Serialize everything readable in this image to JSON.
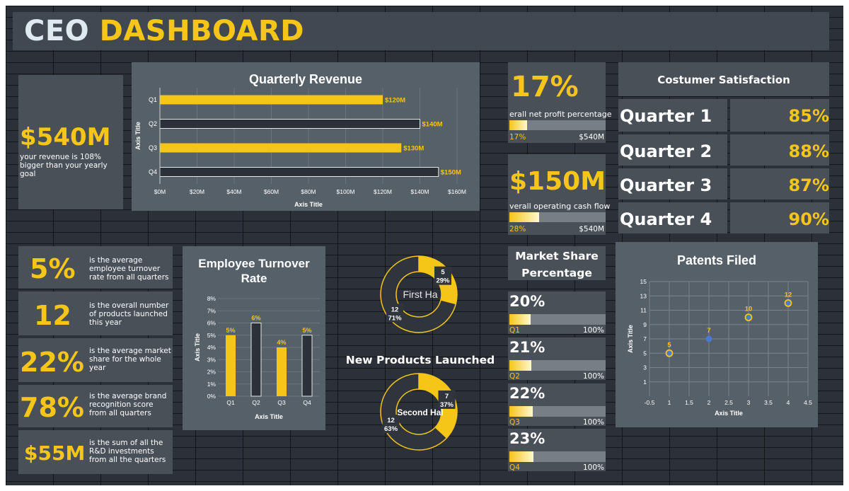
{
  "header": {
    "title_part1": "CEO",
    "title_part2": "DASHBOARD"
  },
  "revenue_kpi": {
    "value": "$540M",
    "note": "your revenue is 108% bigger than your yearly goal"
  },
  "quarterly_revenue": {
    "title": "Quarterly Revenue",
    "chart_data": {
      "type": "bar",
      "orientation": "horizontal",
      "categories": [
        "Q1",
        "Q2",
        "Q3",
        "Q4"
      ],
      "values": [
        120,
        140,
        130,
        150
      ],
      "data_labels": [
        "$120M",
        "$140M",
        "$130M",
        "$150M"
      ],
      "xlabel": "Axis Title",
      "ylabel": "Axis Title",
      "xlim": [
        0,
        160
      ],
      "xticks": [
        "$0M",
        "$20M",
        "$40M",
        "$60M",
        "$80M",
        "$100M",
        "$120M",
        "$140M",
        "$160M"
      ],
      "bar_colors": [
        "#f5c518",
        "#2c3139",
        "#f5c518",
        "#2c3139"
      ]
    }
  },
  "profit": {
    "value": "17%",
    "label": "erall net profit percentage",
    "bar_left": "17%",
    "bar_right": "$540M",
    "fill": 0.17
  },
  "cashflow": {
    "value": "$150M",
    "label": "verall  operating cash flow",
    "bar_left": "28%",
    "bar_right": "$540M",
    "fill": 0.28
  },
  "satisfaction": {
    "title": "Costumer Satisfaction",
    "rows": [
      {
        "label": "Quarter 1",
        "value": "85%"
      },
      {
        "label": "Quarter 2",
        "value": "88%"
      },
      {
        "label": "Quarter 3",
        "value": "87%"
      },
      {
        "label": "Quarter 4",
        "value": "90%"
      }
    ]
  },
  "left_kpis": [
    {
      "value": "5%",
      "note": "is the average employee turnover rate from all quarters"
    },
    {
      "value": "12",
      "note": "is the overall number of products launched this year"
    },
    {
      "value": "22%",
      "note": "is the average market share for the whole year"
    },
    {
      "value": "78%",
      "note": "is the average brand recognition score from all quarters"
    },
    {
      "value": "$55M",
      "note": "is the sum of all the R&D investments from all the quarters"
    }
  ],
  "turnover": {
    "title": "Employee Turnover Rate",
    "chart_data": {
      "type": "bar",
      "categories": [
        "Q1",
        "Q2",
        "Q3",
        "Q4"
      ],
      "values": [
        5,
        6,
        4,
        5
      ],
      "data_labels": [
        "5%",
        "6%",
        "4%",
        "5%"
      ],
      "xlabel": "Axis Title",
      "ylabel": "Axis Title",
      "ylim": [
        0,
        8
      ],
      "yticks": [
        "0%",
        "1%",
        "2%",
        "3%",
        "4%",
        "5%",
        "6%",
        "7%",
        "8%"
      ],
      "bar_colors": [
        "#f5c518",
        "#2c3139",
        "#f5c518",
        "#2c3139"
      ]
    }
  },
  "products": {
    "title": "New Products Launched",
    "donuts": [
      {
        "center": "First Ha",
        "slices": [
          {
            "label": "5\n29%",
            "value": 5,
            "percent": 29
          },
          {
            "label": "12\n71%",
            "value": 12,
            "percent": 71
          }
        ]
      },
      {
        "center": "Second Hal",
        "slices": [
          {
            "label": "7\n37%",
            "value": 7,
            "percent": 37
          },
          {
            "label": "12\n63%",
            "value": 12,
            "percent": 63
          }
        ]
      }
    ]
  },
  "market_share": {
    "title": "Market Share Percentage",
    "rows": [
      {
        "value": "20%",
        "q": "Q1",
        "max": "100%",
        "fill": 0.2
      },
      {
        "value": "21%",
        "q": "Q2",
        "max": "100%",
        "fill": 0.21
      },
      {
        "value": "22%",
        "q": "Q3",
        "max": "100%",
        "fill": 0.22
      },
      {
        "value": "23%",
        "q": "Q4",
        "max": "100%",
        "fill": 0.23
      }
    ]
  },
  "patents": {
    "title": "Patents Filed",
    "chart_data": {
      "type": "scatter",
      "x": [
        1,
        2,
        3,
        4
      ],
      "y": [
        5,
        7,
        10,
        12
      ],
      "data_labels": [
        "5",
        "7",
        "10",
        "12"
      ],
      "xlabel": "Axis Title",
      "ylabel": "Axis Title",
      "xlim": [
        0.5,
        4.5
      ],
      "ylim": [
        -1,
        15
      ],
      "xticks": [
        "-0.5",
        "1",
        "1.5",
        "2",
        "2.5",
        "3",
        "3.5",
        "4",
        "4.5"
      ],
      "yticks": [
        "1",
        "3",
        "5",
        "7",
        "9",
        "11",
        "13",
        "15"
      ],
      "grid": true
    }
  }
}
